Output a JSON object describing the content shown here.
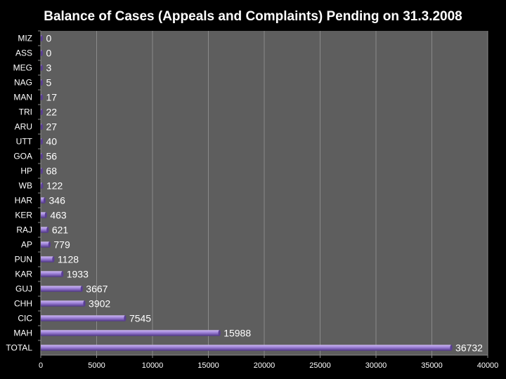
{
  "colors": {
    "background": "#000000",
    "plot_area": "#5e5e5e",
    "gridline": "#8a8a8a",
    "bar": "#9b7fd6",
    "bar_dark": "#5a3f93",
    "text": "#ffffff"
  },
  "chart_data": {
    "type": "bar",
    "orientation": "horizontal",
    "title": "Balance of Cases (Appeals and Complaints) Pending on 31.3.2008",
    "xlabel": "",
    "ylabel": "",
    "xlim": [
      0,
      40000
    ],
    "grid": true,
    "categories": [
      "MIZ",
      "ASS",
      "MEG",
      "NAG",
      "MAN",
      "TRI",
      "ARU",
      "UTT",
      "GOA",
      "HP",
      "WB",
      "HAR",
      "KER",
      "RAJ",
      "AP",
      "PUN",
      "KAR",
      "GUJ",
      "CHH",
      "CIC",
      "MAH",
      "TOTAL"
    ],
    "values": [
      0,
      0,
      3,
      5,
      17,
      22,
      27,
      40,
      56,
      68,
      122,
      346,
      463,
      621,
      779,
      1128,
      1933,
      3667,
      3902,
      7545,
      15988,
      36732
    ],
    "x_ticks": [
      "0",
      "5000",
      "10000",
      "15000",
      "20000",
      "25000",
      "30000",
      "35000",
      "40000"
    ]
  }
}
